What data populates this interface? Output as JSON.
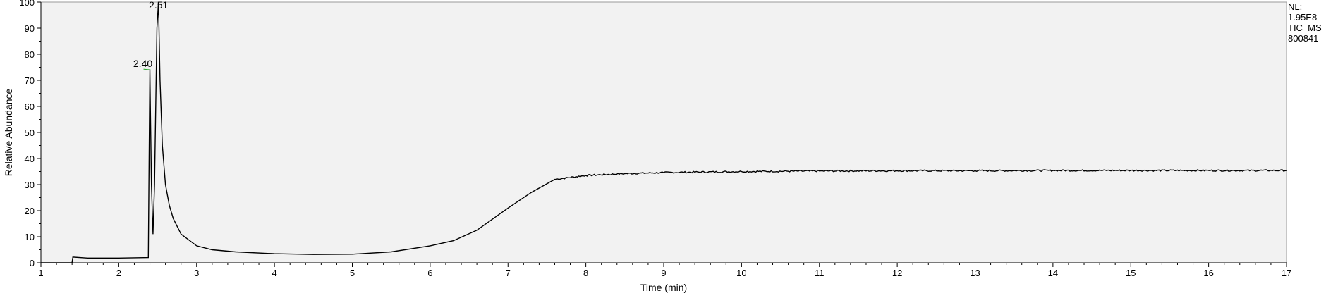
{
  "info": {
    "nl_label": "NL:",
    "nl_value": "1.95E8",
    "scan_type": "TIC  MS",
    "file_name": "800841"
  },
  "colors": {
    "plot_background": "#f2f2f2",
    "trace": "#000000",
    "peak_marker": "#33aa33"
  },
  "chart_data": {
    "type": "line",
    "xlabel": "Time (min)",
    "ylabel": "Relative Abundance",
    "xlim": [
      1,
      17
    ],
    "ylim": [
      0,
      100
    ],
    "x_ticks": [
      "1",
      "2",
      "3",
      "4",
      "5",
      "6",
      "7",
      "8",
      "9",
      "10",
      "11",
      "12",
      "13",
      "14",
      "15",
      "16",
      "17"
    ],
    "y_ticks": [
      "0",
      "10",
      "20",
      "30",
      "40",
      "50",
      "60",
      "70",
      "80",
      "90",
      "100"
    ],
    "grid": false,
    "series": [
      {
        "x": [
          1.0,
          1.4,
          1.41,
          1.6,
          2.0,
          2.38,
          2.39,
          2.4,
          2.42,
          2.44,
          2.46,
          2.49,
          2.51,
          2.53,
          2.56,
          2.6,
          2.65,
          2.7,
          2.8,
          3.0,
          3.2,
          3.5,
          4.0,
          4.5,
          5.0,
          5.5,
          6.0,
          6.3,
          6.6,
          7.0,
          7.3,
          7.6,
          8.0,
          8.5,
          9.0,
          10.0,
          11.0,
          12.0,
          13.0,
          14.0,
          15.0,
          16.0,
          17.0
        ],
        "y": [
          0.0,
          0.0,
          2.2,
          1.8,
          1.8,
          2.0,
          40.0,
          74.0,
          30.0,
          11.0,
          30.0,
          90.0,
          100.0,
          70.0,
          45.0,
          30.0,
          22.0,
          17.0,
          11.0,
          6.5,
          5.0,
          4.2,
          3.5,
          3.2,
          3.3,
          4.2,
          6.5,
          8.5,
          12.5,
          21.0,
          27.0,
          32.0,
          33.5,
          34.2,
          34.6,
          35.0,
          35.2,
          35.3,
          35.3,
          35.4,
          35.4,
          35.4,
          35.4
        ]
      }
    ],
    "annotations": [
      {
        "x": 2.4,
        "y": 74.0,
        "text": "2.40"
      },
      {
        "x": 2.51,
        "y": 100.0,
        "text": "2.51"
      }
    ]
  }
}
